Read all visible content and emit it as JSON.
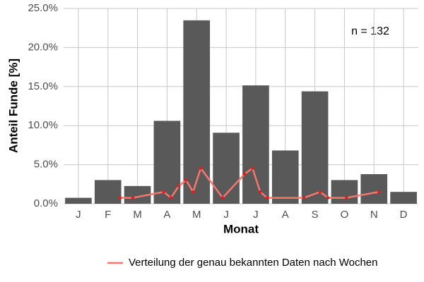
{
  "chart_data": {
    "type": "bar",
    "ylabel": "Anteil Funde [%]",
    "xlabel": "Monat",
    "annotation": "n = 132",
    "categories": [
      "J",
      "F",
      "M",
      "A",
      "M",
      "J",
      "J",
      "A",
      "S",
      "O",
      "N",
      "D"
    ],
    "values": [
      0.76,
      3.03,
      2.27,
      10.61,
      23.48,
      9.09,
      15.15,
      6.82,
      14.39,
      3.03,
      3.79,
      1.52
    ],
    "color": "#595959",
    "ylim": [
      0,
      25
    ],
    "yticks": [
      {
        "value": 0,
        "label": "0.0%"
      },
      {
        "value": 5,
        "label": "5.0%"
      },
      {
        "value": 10,
        "label": "10.0%"
      },
      {
        "value": 15,
        "label": "15.0%"
      },
      {
        "value": 20,
        "label": "20.0%"
      },
      {
        "value": 25,
        "label": "25.0%"
      }
    ],
    "grid": true,
    "line": {
      "name": "Verteilung der genau bekannten Daten nach Wochen",
      "color": "#f8766d",
      "point_color": "#e41a1c",
      "x": [
        2.41,
        2.84,
        3.89,
        4.13,
        4.4,
        4.64,
        4.88,
        5.14,
        5.88,
        6.62,
        6.89,
        7.15,
        7.39,
        8.63,
        9.18,
        9.44,
        10.07,
        11.17
      ],
      "values": [
        0.76,
        0.76,
        1.52,
        0.76,
        2.27,
        3.03,
        1.52,
        4.55,
        0.76,
        3.79,
        4.55,
        1.52,
        0.76,
        0.76,
        1.52,
        0.76,
        0.76,
        1.52
      ]
    },
    "legend_position": "bottom"
  }
}
